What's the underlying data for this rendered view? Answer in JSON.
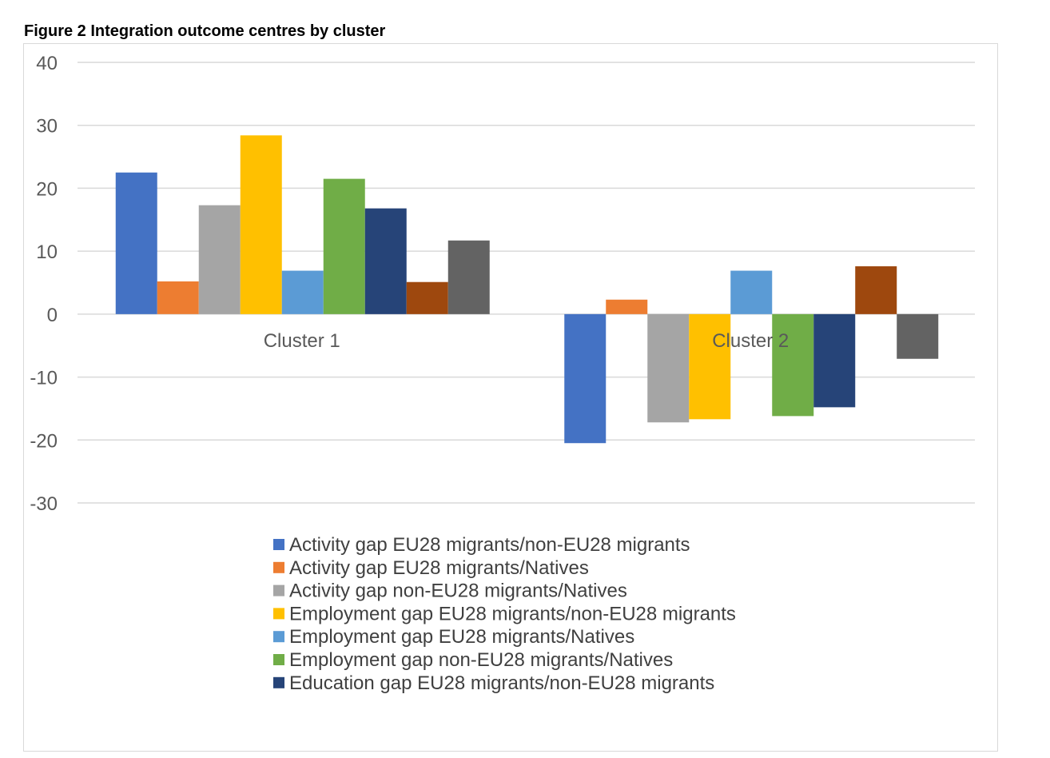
{
  "figure_title": "Figure 2 Integration outcome centres by cluster",
  "chart_data": {
    "type": "bar",
    "title": "",
    "xlabel": "",
    "ylabel": "",
    "ylim": [
      -30,
      40
    ],
    "yticks": [
      40,
      30,
      20,
      10,
      0,
      -10,
      -20,
      -30
    ],
    "grid": true,
    "legend_placement": "bottom",
    "categories": [
      "Cluster 1",
      "Cluster 2"
    ],
    "series": [
      {
        "name": "Activity gap EU28 migrants/non-EU28 migrants",
        "color": "#4472c4",
        "values": [
          22.5,
          -20.5
        ]
      },
      {
        "name": "Activity gap EU28 migrants/Natives",
        "color": "#ed7d31",
        "values": [
          5.2,
          2.3
        ]
      },
      {
        "name": "Activity gap non-EU28 migrants/Natives",
        "color": "#a5a5a5",
        "values": [
          17.3,
          -17.2
        ]
      },
      {
        "name": "Employment gap EU28 migrants/non-EU28 migrants",
        "color": "#ffc000",
        "values": [
          28.4,
          -16.7
        ]
      },
      {
        "name": "Employment gap EU28 migrants/Natives",
        "color": "#5b9bd5",
        "values": [
          6.9,
          6.9
        ]
      },
      {
        "name": "Employment gap non-EU28 migrants/Natives",
        "color": "#70ad47",
        "values": [
          21.5,
          -16.2
        ]
      },
      {
        "name": "Education gap EU28 migrants/non-EU28 migrants",
        "color": "#264478",
        "values": [
          16.8,
          -14.8
        ]
      },
      {
        "color": "#9e480e",
        "values": [
          5.1,
          7.6
        ]
      },
      {
        "color": "#636363",
        "values": [
          11.7,
          -7.1
        ]
      }
    ]
  }
}
